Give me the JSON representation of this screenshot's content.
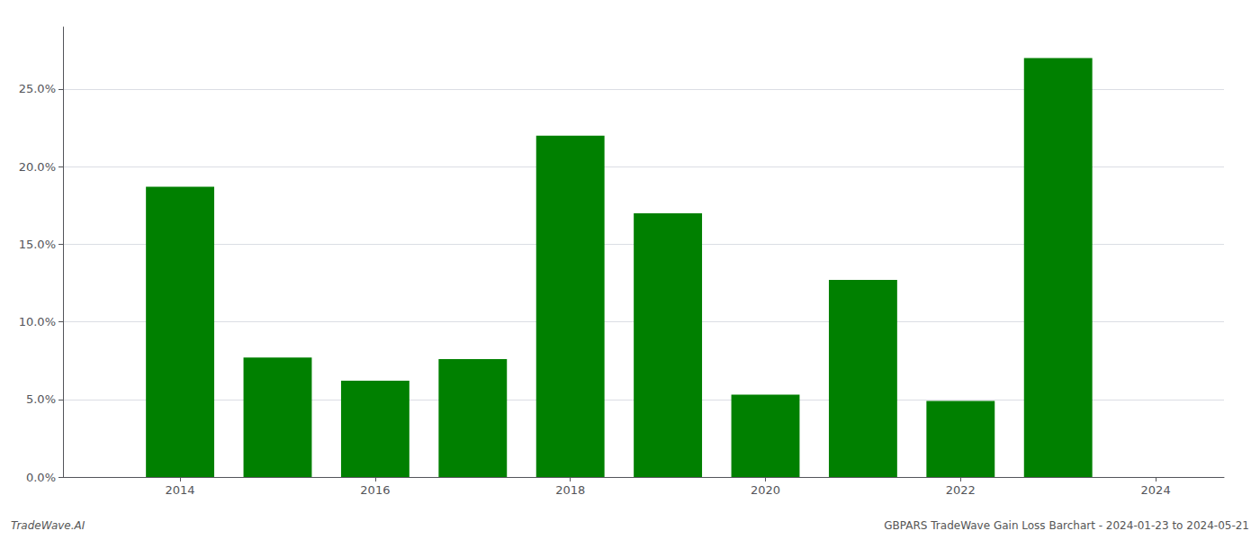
{
  "chart_data": {
    "type": "bar",
    "x": [
      2014,
      2015,
      2016,
      2017,
      2018,
      2019,
      2020,
      2021,
      2022,
      2023
    ],
    "values": [
      0.187,
      0.077,
      0.062,
      0.076,
      0.22,
      0.17,
      0.053,
      0.127,
      0.049,
      0.27
    ],
    "color": "#008000",
    "xlim": [
      2012.8,
      2024.7
    ],
    "xticks": [
      2014,
      2016,
      2018,
      2020,
      2022,
      2024
    ],
    "ylim": [
      0,
      0.29
    ],
    "yticks": [
      {
        "value": 0.0,
        "label": "0.0%"
      },
      {
        "value": 0.05,
        "label": "5.0%"
      },
      {
        "value": 0.1,
        "label": "10.0%"
      },
      {
        "value": 0.15,
        "label": "15.0%"
      },
      {
        "value": 0.2,
        "label": "20.0%"
      },
      {
        "value": 0.25,
        "label": "25.0%"
      }
    ],
    "grid": true,
    "annotations": [
      "TradeWave.AI",
      "GBPARS TradeWave Gain Loss Barchart - 2024-01-23 to 2024-05-21"
    ]
  }
}
